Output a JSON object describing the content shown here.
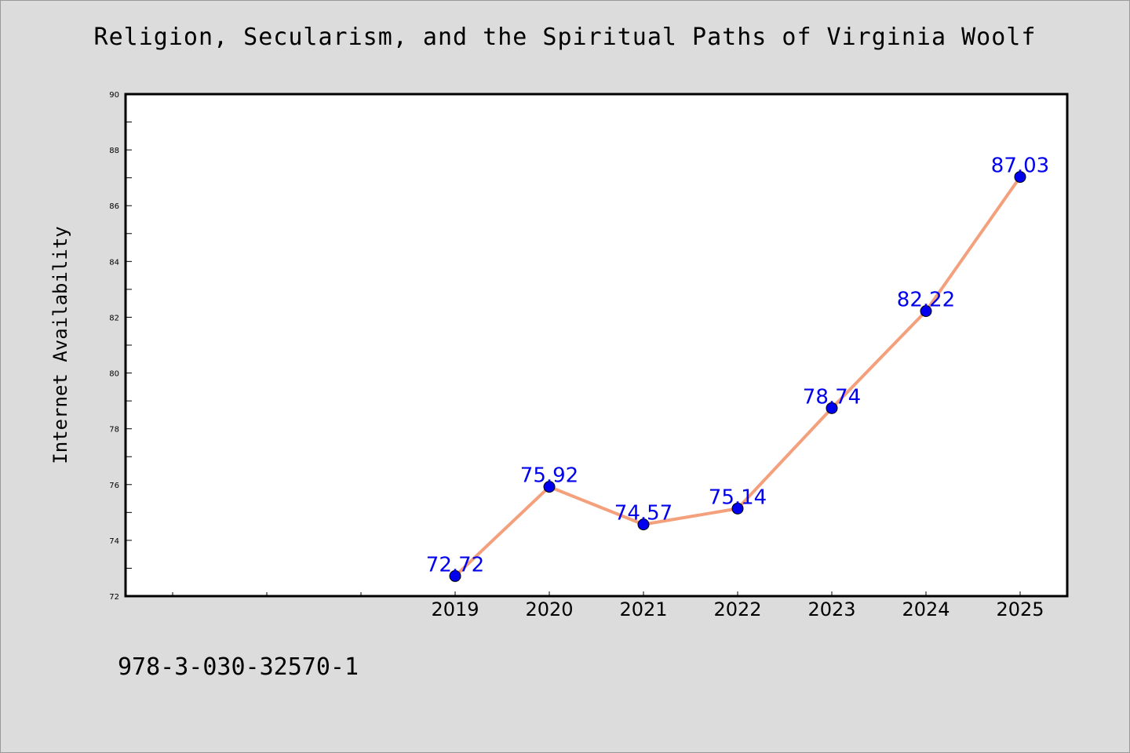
{
  "title": "Religion, Secularism, and the Spiritual Paths of Virginia Woolf",
  "footer": {
    "code": "978-3-030-32570-1"
  },
  "colors": {
    "background": "#dcdcdc",
    "plot_background": "#ffffff",
    "line": "#f4a07c",
    "marker": "#0000ee",
    "label": "#0000ee"
  },
  "chart_data": {
    "type": "line",
    "title": "Religion, Secularism, and the Spiritual Paths of Virginia Woolf",
    "xlabel": "",
    "ylabel": "Internet Availability",
    "x": [
      "2019",
      "2020",
      "2021",
      "2022",
      "2023",
      "2024",
      "2025"
    ],
    "series": [
      {
        "values": [
          72.72,
          75.92,
          74.57,
          75.14,
          78.74,
          82.22,
          87.03
        ]
      }
    ],
    "data_labels": [
      "72.72",
      "75.92",
      "74.57",
      "75.14",
      "78.74",
      "82.22",
      "87.03"
    ],
    "ylim": [
      72,
      90
    ],
    "yticks": [
      72,
      74,
      76,
      78,
      80,
      82,
      84,
      86,
      88,
      90
    ],
    "ytick_labels": [
      "72",
      "74",
      "76",
      "78",
      "80",
      "82",
      "84",
      "86",
      "88",
      "90"
    ],
    "xlim_categories_before_first": 3,
    "grid": false,
    "legend": "none"
  }
}
